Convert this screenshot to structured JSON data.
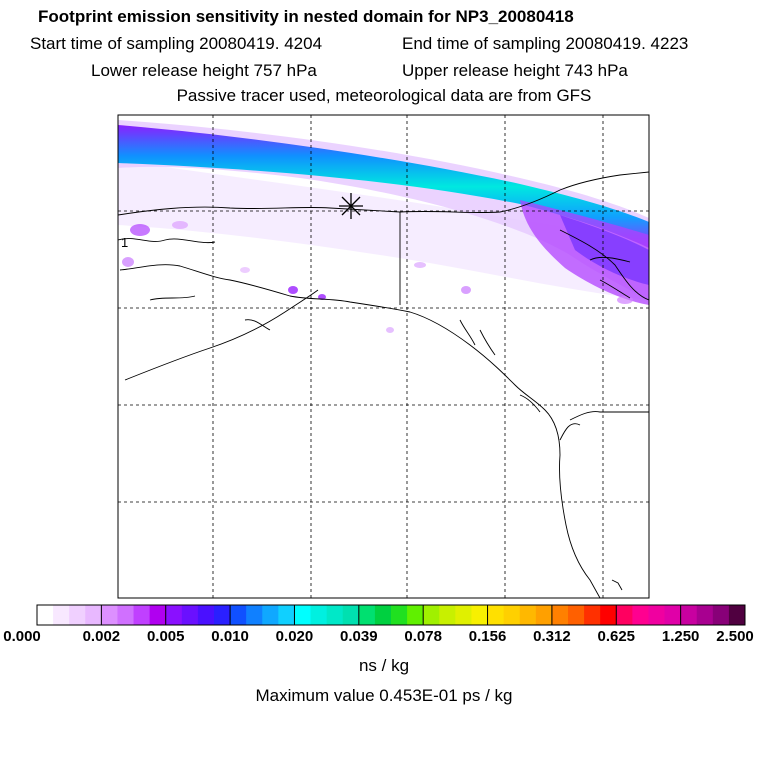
{
  "header": {
    "title": "Footprint emission sensitivity in nested domain for NP3_20080418",
    "start_label": "Start time of sampling 20080419.  4204",
    "end_label": "End time of sampling 20080419.  4223",
    "lower_label": "Lower release height  757 hPa",
    "upper_label": "Upper release height  743 hPa",
    "note": "Passive tracer used, meteorological data are from GFS"
  },
  "map": {
    "edge_label": "1",
    "receptor_marker": "release-location-asterisk"
  },
  "colorbar": {
    "ticks": [
      "0.000",
      "0.002",
      "0.005",
      "0.010",
      "0.020",
      "0.039",
      "0.078",
      "0.156",
      "0.312",
      "0.625",
      "1.250",
      "2.500"
    ],
    "colors": [
      [
        "#ffffff",
        "#f8e8ff",
        "#f0d0ff",
        "#e8b8ff"
      ],
      [
        "#dd90ff",
        "#d070ff",
        "#c040ff",
        "#b000f0"
      ],
      [
        "#8a10ff",
        "#6a10ff",
        "#4a10ff",
        "#2a20ff"
      ],
      [
        "#1050ff",
        "#1080ff",
        "#10a8ff",
        "#10d0ff"
      ],
      [
        "#00ffff",
        "#00f0e0",
        "#00e8c8",
        "#00e0b0"
      ],
      [
        "#00e070",
        "#00d040",
        "#20e020",
        "#60f000"
      ],
      [
        "#a0f000",
        "#c8f000",
        "#e0f000",
        "#f8f000"
      ],
      [
        "#ffe000",
        "#ffd000",
        "#ffb800",
        "#ffa000"
      ],
      [
        "#ff8000",
        "#ff6000",
        "#ff3000",
        "#ff0000"
      ],
      [
        "#ff0060",
        "#ff0090",
        "#f000a0",
        "#e000a8"
      ],
      [
        "#c800a0",
        "#a80090",
        "#880078",
        "#500040"
      ]
    ],
    "unit": "ns / kg",
    "max_label": "Maximum value  0.453E-01 ps / kg"
  }
}
